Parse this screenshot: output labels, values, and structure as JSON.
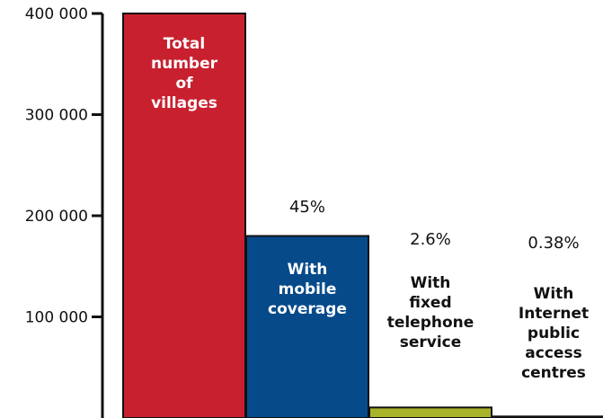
{
  "chart_data": {
    "type": "bar",
    "categories": [
      [
        "Total",
        "number",
        "of",
        "villages"
      ],
      [
        "With",
        "mobile",
        "coverage"
      ],
      [
        "With",
        "fixed",
        "telephone",
        "service"
      ],
      [
        "With",
        "Internet",
        "public",
        "access",
        "centres"
      ]
    ],
    "values": [
      400000,
      180000,
      10400,
      1520
    ],
    "data_labels": [
      "",
      "45%",
      "2.6%",
      "0.38%"
    ],
    "colors": [
      "#c8202f",
      "#064a8a",
      "#a8b32a",
      "#a8b32a"
    ],
    "category_label_colors": [
      "#ffffff",
      "#ffffff",
      "#111111",
      "#111111"
    ],
    "ylim": [
      0,
      400000
    ],
    "yticks": [
      100000,
      200000,
      300000,
      400000
    ],
    "ytick_labels": [
      "100 000",
      "200 000",
      "300 000",
      "400 000"
    ],
    "grid": false,
    "title": "",
    "xlabel": "",
    "ylabel": ""
  }
}
